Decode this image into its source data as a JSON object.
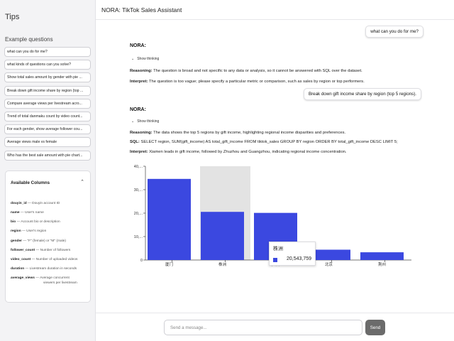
{
  "sidebar": {
    "title": "Tips",
    "examples_label": "Example questions",
    "questions": [
      "what can you do for me?",
      "what kinds of questions can you solve?",
      "Show total sales amount by gender with pie ...",
      "Break down gift income share by region (top ...",
      "Compare average views per livestream acro...",
      "Trend of total danmaku count by video count...",
      "For each gender, show average follower cou...",
      "Average views male vs female",
      "Who has the best sale amount with pie chart..."
    ],
    "columns_title": "Available Columns",
    "columns_chevron": "⌃",
    "columns": [
      {
        "name": "douyin_id",
        "desc": "Douyin account ID"
      },
      {
        "name": "name",
        "desc": "User's name"
      },
      {
        "name": "bio",
        "desc": "Account bio or description"
      },
      {
        "name": "region",
        "desc": "User's region"
      },
      {
        "name": "gender",
        "desc": "\"F\" (female) or \"M\" (male)"
      },
      {
        "name": "follower_count",
        "desc": "Number of followers"
      },
      {
        "name": "video_count",
        "desc": "Number of uploaded videos"
      },
      {
        "name": "duration",
        "desc": "Livestream duration in seconds"
      },
      {
        "name": "average_views",
        "desc": "Average concurrent",
        "desc2": "viewers per livestream"
      }
    ]
  },
  "header": {
    "title": "NORA: TikTok Sales Assistant"
  },
  "conversation": {
    "user_msg_1": "what can you do for me?",
    "nora_label_1": "NORA:",
    "thinking_1": "Show thinking",
    "reasoning_label_1": "Reasoning:",
    "reasoning_1": "The question is broad and not specific to any data or analysis, so it cannot be answered with SQL over the dataset.",
    "interpret_label_1": "Interpret:",
    "interpret_1": "The question is too vague; please specify a particular metric or comparison, such as sales by region or top performers.",
    "user_msg_2": "Break down gift income share by region (top 5 regions).",
    "nora_label_2": "NORA:",
    "thinking_2": "Show thinking",
    "reasoning_label_2": "Reasoning:",
    "reasoning_2": "The data shows the top 5 regions by gift income, highlighting regional income disparities and preferences.",
    "sql_label": "SQL:",
    "sql": "SELECT region, SUM(gift_income) AS total_gift_income FROM tiktok_sales GROUP BY region ORDER BY total_gift_income DESC LIMIT 5;",
    "interpret_label_2": "Interpret:",
    "interpret_2": "Xiamen leads in gift income, followed by Zhuzhou and Guangzhou, indicating regional income concentration."
  },
  "chart_data": {
    "type": "bar",
    "categories": [
      "厦门",
      "株洲",
      "广州",
      "北京",
      "荆州"
    ],
    "values": [
      34600000,
      20543759,
      20100000,
      4400000,
      3300000
    ],
    "ytick_labels": [
      "40,...",
      "30,...",
      "20,...",
      "10,...",
      "0"
    ],
    "ylim": [
      0,
      40000000
    ],
    "xlabel": "",
    "ylabel": "",
    "highlighted_index": 1,
    "bar_color": "#3b48e0",
    "highlight_color": "#e3e3e3",
    "tooltip": {
      "title": "株洲",
      "value": "20,543,759"
    }
  },
  "input": {
    "placeholder": "Send a message...",
    "send_label": "Send"
  }
}
